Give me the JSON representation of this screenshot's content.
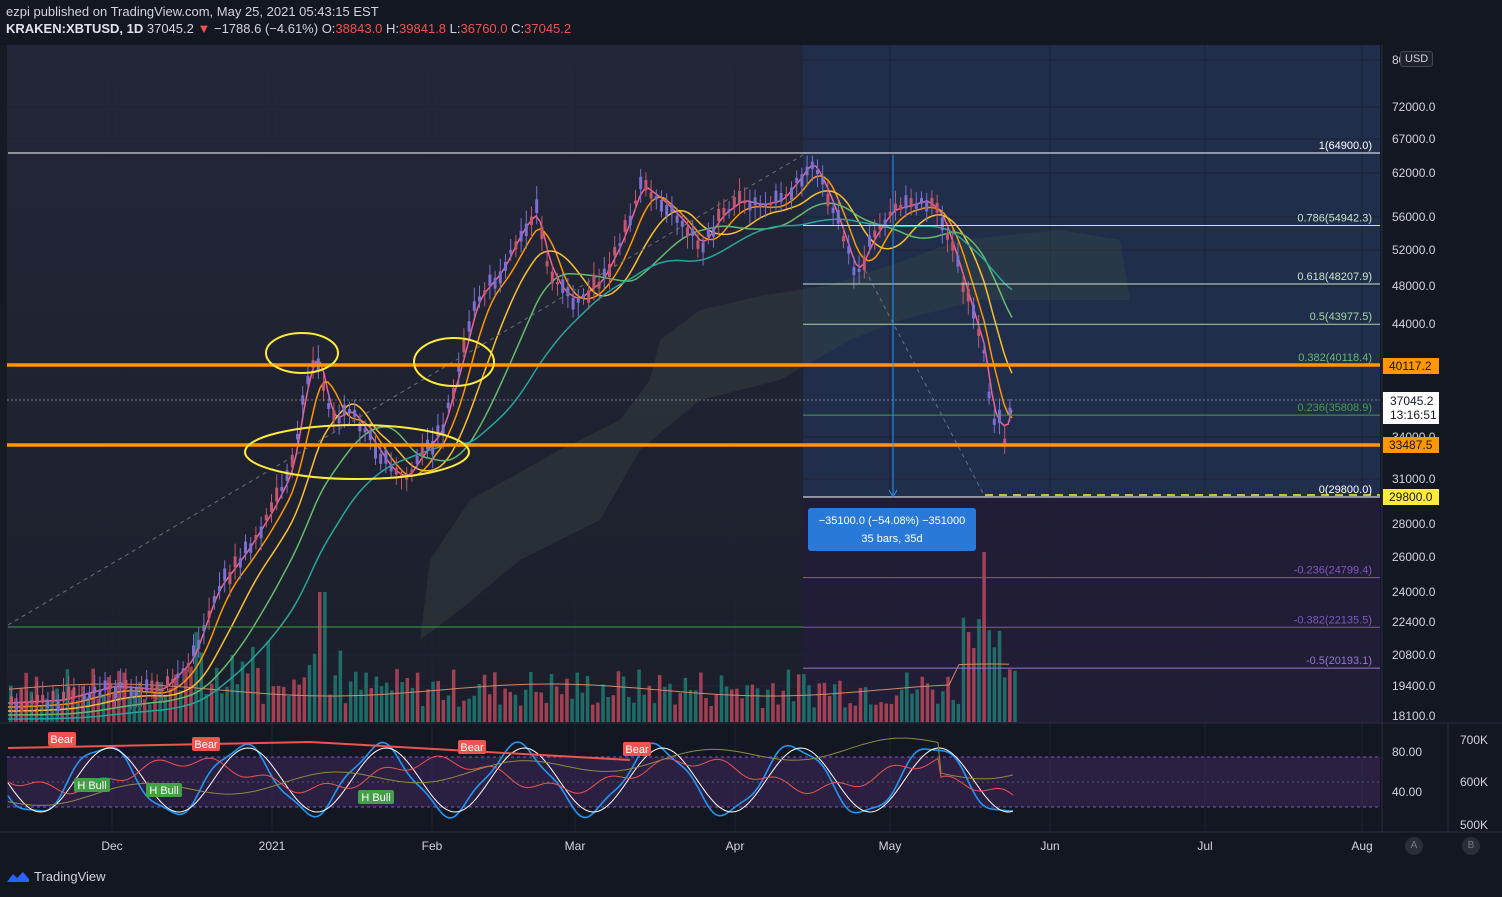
{
  "header": {
    "publisher": "ezpi published on TradingView.com, May 25, 2021 05:43:15 EST",
    "symbol": "KRAKEN:XBTUSD, 1D",
    "last": "37045.2",
    "change": "−1788.6 (−4.61%)",
    "o_label": "O:",
    "o": "38843.0",
    "h_label": "H:",
    "h": "39841.8",
    "l_label": "L:",
    "l": "36760.0",
    "c_label": "C:",
    "c": "37045.2"
  },
  "footer": {
    "brand": "TradingView"
  },
  "currency": "USD",
  "buttons": {
    "a": "A",
    "b": "B"
  },
  "measure": {
    "line1": "−35100.0 (−54.08%) −351000",
    "line2": "35 bars, 35d"
  },
  "colors": {
    "up": "#26a69a",
    "down": "#ef5350",
    "candle_up": "#7b6fd0",
    "orange": "#ff9800",
    "fib_top": "#ffffff",
    "annot": "#ffeb3b",
    "stoch_k": "#2196f3",
    "stoch_d": "#ffffff",
    "rsi": "#ef5350"
  },
  "chart_data": {
    "type": "candlestick",
    "x_ticks": [
      "Dec",
      "2021",
      "Feb",
      "Mar",
      "Apr",
      "May",
      "Jun",
      "Jul",
      "Aug"
    ],
    "y_ticks": [
      "80000.0",
      "72000.0",
      "67000.0",
      "62000.0",
      "56000.0",
      "52000.0",
      "48000.0",
      "44000.0",
      "34000.0",
      "31000.0",
      "28000.0",
      "26000.0",
      "24000.0",
      "22400.0",
      "20800.0",
      "19400.0",
      "18100.0"
    ],
    "price_labels": {
      "r1": "40117.2",
      "last": "37045.2",
      "countdown": "13:16:51",
      "r2": "33487.5",
      "low": "29800.0"
    },
    "fib_levels": [
      {
        "label": "1(64900.0)",
        "price": 64900
      },
      {
        "label": "0.786(54942.3)",
        "price": 54942.3
      },
      {
        "label": "0.618(48207.9)",
        "price": 48207.9
      },
      {
        "label": "0.5(43977.5)",
        "price": 43977.5
      },
      {
        "label": "0.382(40118.4)",
        "price": 40118.4
      },
      {
        "label": "0.236(35808.9)",
        "price": 35808.9
      },
      {
        "label": "0(29800.0)",
        "price": 29800
      },
      {
        "label": "-0.236(24799.4)",
        "price": 24799.4
      },
      {
        "label": "-0.382(22135.5)",
        "price": 22135.5
      },
      {
        "label": "-0.5(20193.1)",
        "price": 20193.1
      }
    ],
    "horizontal_levels": [
      40117.2,
      33487.5
    ],
    "indicator_ticks": [
      "80.00",
      "40.00"
    ],
    "volume_ticks": [
      "700K",
      "600K",
      "500K"
    ],
    "divergence_labels": [
      {
        "text": "Bear",
        "type": "bear"
      },
      {
        "text": "Bear",
        "type": "bear"
      },
      {
        "text": "Bear",
        "type": "bear"
      },
      {
        "text": "Bear",
        "type": "bear"
      },
      {
        "text": "H Bull",
        "type": "bull"
      },
      {
        "text": "H Bull",
        "type": "bull"
      },
      {
        "text": "H Bull",
        "type": "bull"
      }
    ]
  }
}
